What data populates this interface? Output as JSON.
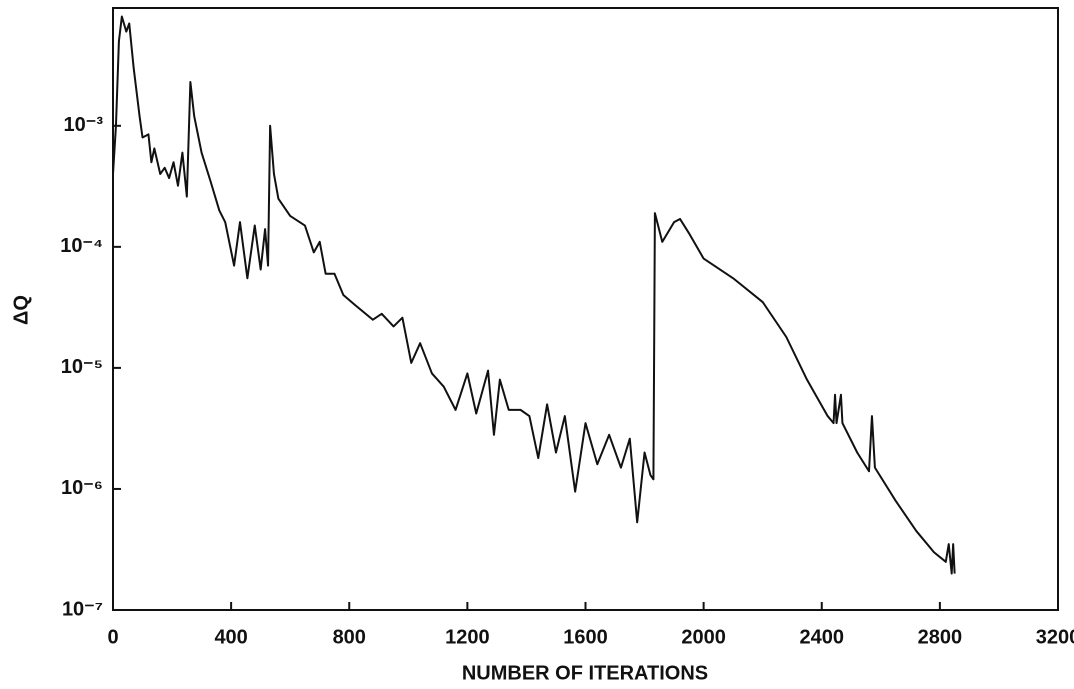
{
  "chart_data": {
    "type": "line",
    "xlabel": "NUMBER OF ITERATIONS",
    "ylabel": "ΔQ",
    "log_y": true,
    "grid": false,
    "xlim": [
      0,
      3200
    ],
    "xticks": [
      0,
      400,
      800,
      1200,
      1600,
      2000,
      2400,
      2800,
      3200
    ],
    "ylim": [
      1e-07,
      0.0094
    ],
    "yticks": [
      {
        "value": 1e-07,
        "label": "10⁻⁷"
      },
      {
        "value": 1e-06,
        "label": "10⁻⁶"
      },
      {
        "value": 1e-05,
        "label": "10⁻⁵"
      },
      {
        "value": 0.0001,
        "label": "10⁻⁴"
      },
      {
        "value": 0.001,
        "label": "10⁻³"
      }
    ],
    "x": [
      0,
      10,
      20,
      30,
      45,
      55,
      70,
      90,
      100,
      120,
      130,
      140,
      160,
      175,
      190,
      205,
      220,
      235,
      250,
      262,
      275,
      300,
      330,
      360,
      380,
      410,
      430,
      455,
      480,
      500,
      515,
      525,
      532,
      545,
      560,
      600,
      650,
      680,
      700,
      720,
      750,
      780,
      820,
      880,
      910,
      950,
      980,
      1010,
      1040,
      1080,
      1120,
      1160,
      1200,
      1230,
      1270,
      1290,
      1310,
      1340,
      1380,
      1410,
      1440,
      1470,
      1500,
      1530,
      1565,
      1600,
      1640,
      1680,
      1720,
      1750,
      1775,
      1800,
      1820,
      1830,
      1835,
      1860,
      1900,
      1920,
      1950,
      2000,
      2100,
      2200,
      2280,
      2350,
      2420,
      2440,
      2445,
      2450,
      2465,
      2470,
      2520,
      2560,
      2570,
      2580,
      2650,
      2720,
      2780,
      2820,
      2830,
      2840,
      2845,
      2850
    ],
    "series": [
      {
        "color": "#111111",
        "values": [
          0.0004,
          0.001,
          0.005,
          0.008,
          0.006,
          0.007,
          0.003,
          0.0012,
          0.0008,
          0.00085,
          0.0005,
          0.00065,
          0.0004,
          0.00045,
          0.00037,
          0.0005,
          0.00032,
          0.0006,
          0.00026,
          0.0023,
          0.0012,
          0.0006,
          0.00035,
          0.0002,
          0.00016,
          7e-05,
          0.00016,
          5.5e-05,
          0.00015,
          6.5e-05,
          0.00014,
          7e-05,
          0.001,
          0.0004,
          0.00025,
          0.00018,
          0.00015,
          9e-05,
          0.00011,
          6e-05,
          6e-05,
          4e-05,
          3.3e-05,
          2.5e-05,
          2.8e-05,
          2.2e-05,
          2.6e-05,
          1.1e-05,
          1.6e-05,
          9e-06,
          7e-06,
          4.5e-06,
          9e-06,
          4.2e-06,
          9.5e-06,
          2.8e-06,
          8e-06,
          4.5e-06,
          4.5e-06,
          4e-06,
          1.8e-06,
          5e-06,
          2e-06,
          4e-06,
          9.5e-07,
          3.5e-06,
          1.6e-06,
          2.8e-06,
          1.5e-06,
          2.6e-06,
          5.3e-07,
          2e-06,
          1.3e-06,
          1.2e-06,
          0.00019,
          0.00011,
          0.00016,
          0.00017,
          0.00013,
          8e-05,
          5.5e-05,
          3.5e-05,
          1.8e-05,
          8e-06,
          4e-06,
          3.5e-06,
          6e-06,
          3.5e-06,
          6e-06,
          3.5e-06,
          2e-06,
          1.4e-06,
          4e-06,
          1.5e-06,
          8e-07,
          4.5e-07,
          3e-07,
          2.5e-07,
          3.5e-07,
          2e-07,
          3.5e-07,
          2e-07
        ]
      }
    ]
  }
}
